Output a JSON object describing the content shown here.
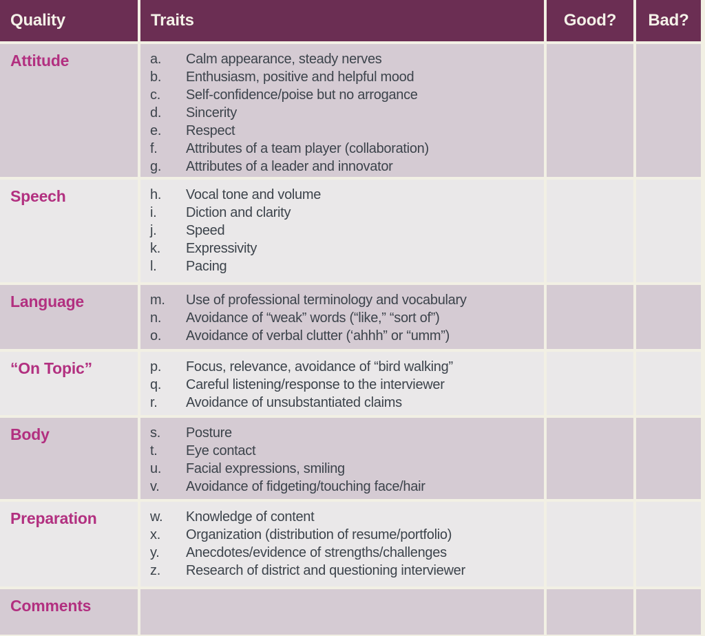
{
  "colors": {
    "header_bg": "#6b2e53",
    "header_text": "#f4f1e8",
    "row_mauve": "#d5cbd3",
    "row_gray": "#eae8e9",
    "gap": "#f2f0e4",
    "quality_text": "#b23080",
    "trait_text": "#3c434b"
  },
  "table": {
    "columns": [
      {
        "label": "Quality"
      },
      {
        "label": "Traits"
      },
      {
        "label": "Good?"
      },
      {
        "label": "Bad?"
      }
    ],
    "rows": [
      {
        "quality": "Attitude",
        "traits": [
          {
            "letter": "a.",
            "text": "Calm appearance, steady nerves"
          },
          {
            "letter": "b.",
            "text": "Enthusiasm, positive and helpful mood"
          },
          {
            "letter": "c.",
            "text": "Self-confidence/poise but no arrogance"
          },
          {
            "letter": "d.",
            "text": "Sincerity"
          },
          {
            "letter": "e.",
            "text": "Respect"
          },
          {
            "letter": "f.",
            "text": "Attributes of a team player (collaboration)"
          },
          {
            "letter": "g.",
            "text": "Attributes of a leader and innovator"
          }
        ],
        "good": "",
        "bad": ""
      },
      {
        "quality": "Speech",
        "traits": [
          {
            "letter": "h.",
            "text": "Vocal tone and volume"
          },
          {
            "letter": "i.",
            "text": "Diction and clarity"
          },
          {
            "letter": "j.",
            "text": "Speed"
          },
          {
            "letter": "k.",
            "text": "Expressivity"
          },
          {
            "letter": "l.",
            "text": "Pacing"
          }
        ],
        "good": "",
        "bad": ""
      },
      {
        "quality": "Language",
        "traits": [
          {
            "letter": "m.",
            "text": "Use of professional terminology and vocabulary"
          },
          {
            "letter": "n.",
            "text": "Avoidance of “weak” words (“like,” “sort of”)"
          },
          {
            "letter": "o.",
            "text": "Avoidance of verbal clutter (‘ahhh” or “umm”)"
          }
        ],
        "good": "",
        "bad": ""
      },
      {
        "quality": "“On Topic”",
        "traits": [
          {
            "letter": "p.",
            "text": "Focus, relevance, avoidance of “bird walking”"
          },
          {
            "letter": "q.",
            "text": "Careful listening/response to the interviewer"
          },
          {
            "letter": "r.",
            "text": "Avoidance of unsubstantiated claims"
          }
        ],
        "good": "",
        "bad": ""
      },
      {
        "quality": "Body",
        "traits": [
          {
            "letter": "s.",
            "text": "Posture"
          },
          {
            "letter": "t.",
            "text": "Eye contact"
          },
          {
            "letter": "u.",
            "text": "Facial expressions, smiling"
          },
          {
            "letter": "v.",
            "text": "Avoidance of fidgeting/touching face/hair"
          }
        ],
        "good": "",
        "bad": ""
      },
      {
        "quality": "Preparation",
        "traits": [
          {
            "letter": "w.",
            "text": "Knowledge of content"
          },
          {
            "letter": "x.",
            "text": "Organization (distribution of resume/portfolio)"
          },
          {
            "letter": "y.",
            "text": "Anecdotes/evidence of strengths/challenges"
          },
          {
            "letter": "z.",
            "text": "Research of district and questioning interviewer"
          }
        ],
        "good": "",
        "bad": ""
      },
      {
        "quality": "Comments",
        "traits": [],
        "good": "",
        "bad": ""
      }
    ]
  }
}
